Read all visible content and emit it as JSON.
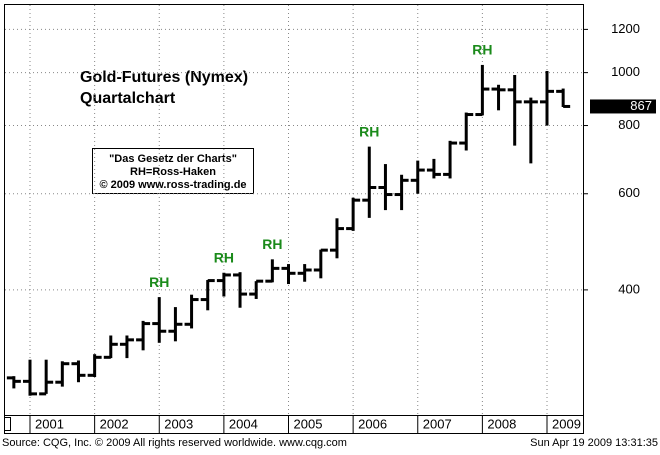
{
  "chart_data": {
    "type": "ohlc",
    "title": "Gold-Futures (Nymex)",
    "subtitle": "Quartalchart",
    "note_lines": [
      "\"Das Gesetz der Charts\"",
      "RH=Ross-Haken",
      "© 2009  www.ross-trading.de"
    ],
    "source": "Source: CQG, Inc. © 2009 All rights reserved worldwide. www.cqg.com",
    "timestamp": "Sun Apr 19 2009 13:31:35",
    "x": [
      2000.75,
      2001.0,
      2001.25,
      2001.5,
      2001.75,
      2002.0,
      2002.25,
      2002.5,
      2002.75,
      2003.0,
      2003.25,
      2003.5,
      2003.75,
      2004.0,
      2004.25,
      2004.5,
      2004.75,
      2005.0,
      2005.25,
      2005.5,
      2005.75,
      2006.0,
      2006.25,
      2006.5,
      2006.75,
      2007.0,
      2007.25,
      2007.5,
      2007.75,
      2008.0,
      2008.25,
      2008.5,
      2008.75,
      2009.0,
      2009.25
    ],
    "open": [
      276,
      272,
      258,
      271,
      293,
      279,
      301,
      318,
      324,
      347,
      336,
      346,
      384,
      416,
      426,
      393,
      415,
      438,
      429,
      435,
      473,
      518,
      584,
      616,
      598,
      635,
      663,
      651,
      743,
      838,
      933,
      930,
      884,
      884,
      924
    ],
    "high": [
      278,
      298,
      298,
      296,
      297,
      305,
      330,
      330,
      351,
      388,
      372,
      392,
      417,
      430,
      431,
      415,
      455,
      446,
      446,
      474,
      541,
      590,
      732,
      680,
      650,
      690,
      695,
      750,
      845,
      1033,
      950,
      990,
      900,
      1007,
      935
    ],
    "low": [
      264,
      256,
      258,
      266,
      271,
      277,
      300,
      300,
      310,
      320,
      322,
      340,
      367,
      389,
      371,
      385,
      413,
      410,
      414,
      420,
      457,
      513,
      542,
      560,
      560,
      600,
      640,
      640,
      720,
      835,
      853,
      735,
      682,
      800,
      865
    ],
    "close": [
      272,
      258,
      271,
      293,
      279,
      301,
      318,
      324,
      347,
      336,
      346,
      384,
      416,
      426,
      393,
      415,
      438,
      429,
      435,
      473,
      518,
      584,
      616,
      598,
      635,
      663,
      651,
      743,
      838,
      933,
      930,
      884,
      884,
      924,
      867
    ],
    "color": "#000000",
    "last_value": 867,
    "annotations": [
      {
        "text": "RH",
        "x": 2003.0
      },
      {
        "text": "RH",
        "x": 2004.0
      },
      {
        "text": "RH",
        "x": 2004.75
      },
      {
        "text": "RH",
        "x": 2006.25
      },
      {
        "text": "RH",
        "x": 2008.0
      }
    ],
    "annotation_color": "#1a8a1a",
    "log_scale": true,
    "ylim": [
      236,
      1330
    ],
    "yticks": [
      400,
      600,
      800,
      1000,
      1200
    ],
    "xlim": [
      2000.613,
      2009.557
    ],
    "xticks": [
      2001,
      2002,
      2003,
      2004,
      2005,
      2006,
      2007,
      2008,
      2009
    ],
    "grid": true
  }
}
